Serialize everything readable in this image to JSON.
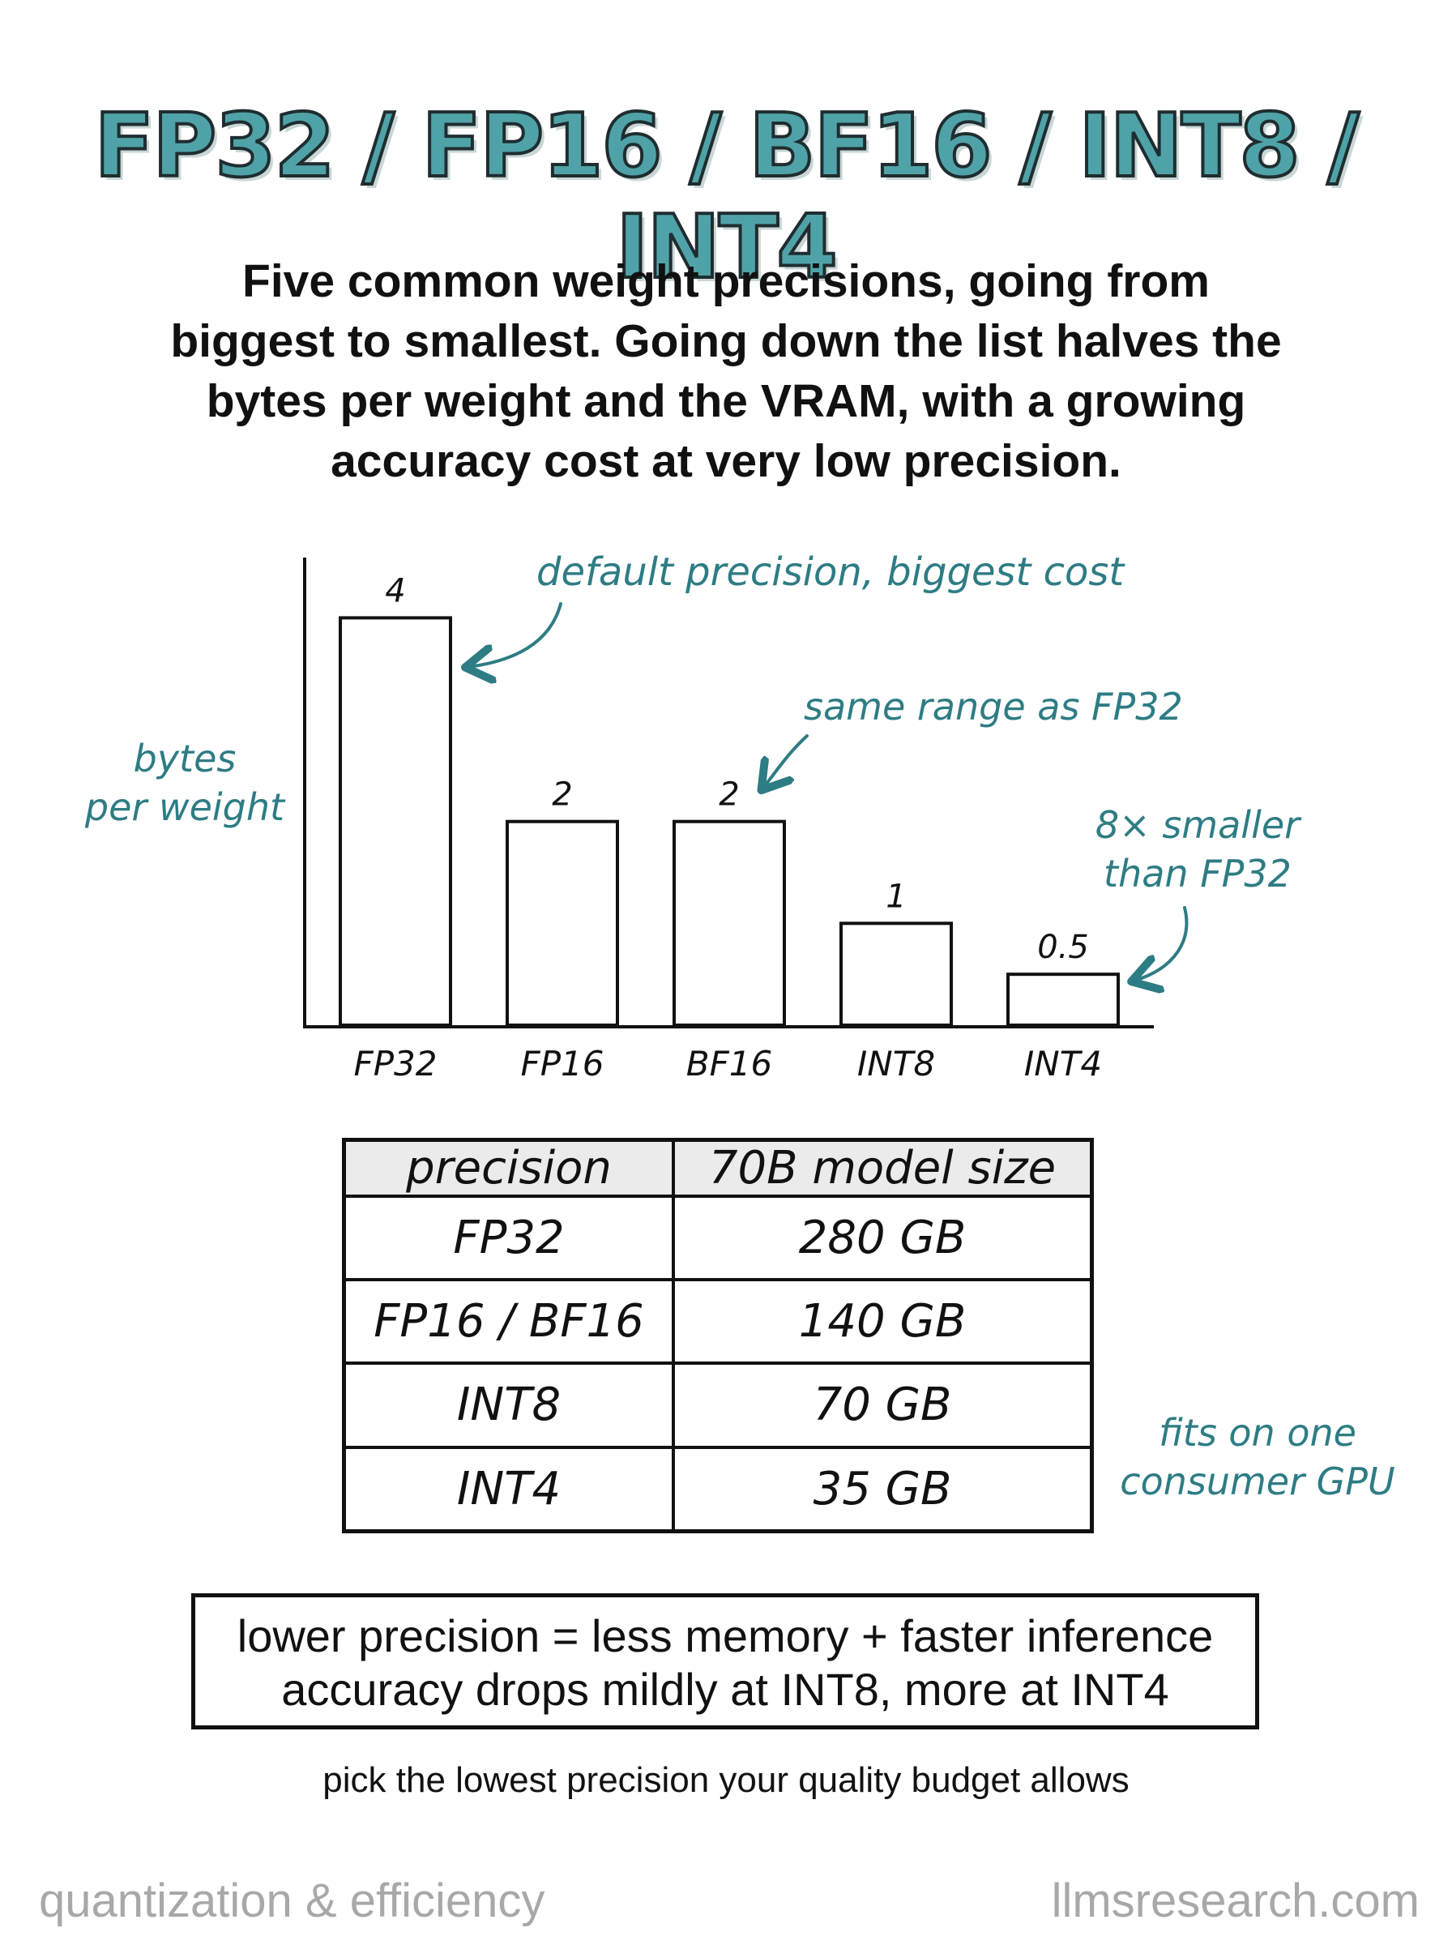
{
  "title": "FP32 / FP16 / BF16 / INT8 / INT4",
  "subtitle": "Five common weight precisions, going from biggest to smallest. Going down the list halves the bytes per weight and the VRAM, with a growing accuracy cost at very low precision.",
  "chart_data": {
    "type": "bar",
    "categories": [
      "FP32",
      "FP16",
      "BF16",
      "INT8",
      "INT4"
    ],
    "values": [
      4,
      2,
      2,
      1,
      0.5
    ],
    "value_labels": [
      "4",
      "2",
      "2",
      "1",
      "0.5"
    ],
    "ylabel": [
      "bytes",
      "per weight"
    ],
    "ylim": [
      0,
      4.6
    ],
    "grid": false,
    "annotations": {
      "fp32": "default precision, biggest cost",
      "bf16": "same range as FP32",
      "int4": [
        "8× smaller",
        "than FP32"
      ]
    }
  },
  "table": {
    "headers": [
      "precision",
      "70B model size"
    ],
    "rows": [
      [
        "FP32",
        "280 GB"
      ],
      [
        "FP16 / BF16",
        "140 GB"
      ],
      [
        "INT8",
        "70 GB"
      ],
      [
        "INT4",
        "35 GB"
      ]
    ],
    "annotation": [
      "fits on one",
      "consumer GPU"
    ]
  },
  "summary": {
    "line1": "lower precision = less memory + faster inference",
    "line2": "accuracy drops mildly at INT8, more at INT4"
  },
  "tagline": "pick the lowest precision your quality budget allows",
  "footer": {
    "left": "quantization & efficiency",
    "right": "llmsresearch.com"
  },
  "colors": {
    "accent": "#2e7c84",
    "title_fill": "#4fa3a8",
    "footer_gray": "#a8a8a8"
  }
}
